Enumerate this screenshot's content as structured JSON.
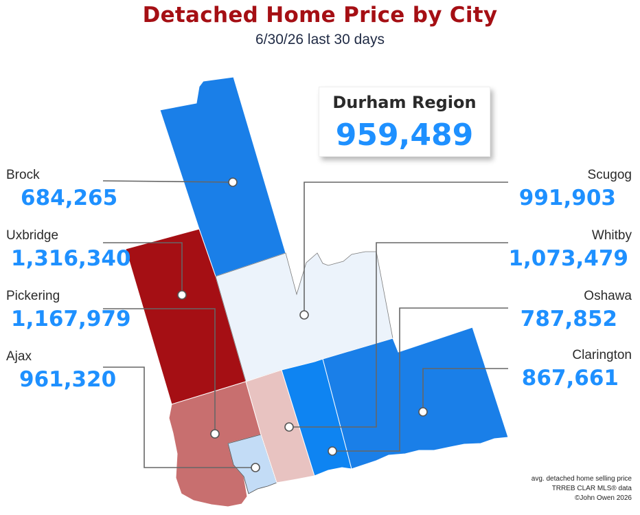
{
  "title": "Detached Home Price by City",
  "subtitle": "6/30/26  last 30 days",
  "region": {
    "name": "Durham Region",
    "value": "959,489"
  },
  "cities": {
    "brock": {
      "name": "Brock",
      "value": "684,265",
      "color": "#1a7fe8"
    },
    "uxbridge": {
      "name": "Uxbridge",
      "value": "1,316,340",
      "color": "#a50f14"
    },
    "pickering": {
      "name": "Pickering",
      "value": "1,167,979",
      "color": "#c86f6f"
    },
    "ajax": {
      "name": "Ajax",
      "value": "961,320",
      "color": "#c3dcf6"
    },
    "scugog": {
      "name": "Scugog",
      "value": "991,903",
      "color": "#ecf3fb"
    },
    "whitby": {
      "name": "Whitby",
      "value": "1,073,479",
      "color": "#e8c3c1"
    },
    "oshawa": {
      "name": "Oshawa",
      "value": "787,852",
      "color": "#0e84f2"
    },
    "clarington": {
      "name": "Clarington",
      "value": "867,661",
      "color": "#1a7fe8"
    }
  },
  "credits": {
    "line1": "avg. detached home selling price",
    "line2": "TRREB CLAR MLS® data",
    "line3": "©John Owen 2026"
  }
}
